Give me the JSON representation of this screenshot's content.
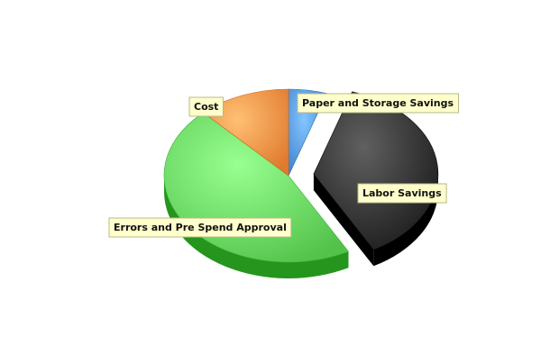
{
  "chart_data": {
    "type": "pie",
    "style": "3d-exploded",
    "title": "",
    "slices": [
      {
        "label": "Paper and Storage Savings",
        "value": 5,
        "color": "#3d7fc9",
        "exploded": false
      },
      {
        "label": "Labor Savings",
        "value": 37,
        "color": "#1a1a1a",
        "exploded": true
      },
      {
        "label": "Errors and Pre Spend Approval",
        "value": 46,
        "color": "#52c24a",
        "exploded": false
      },
      {
        "label": "Cost",
        "value": 12,
        "color": "#e07a2e",
        "exploded": false
      }
    ],
    "legend": "none"
  }
}
